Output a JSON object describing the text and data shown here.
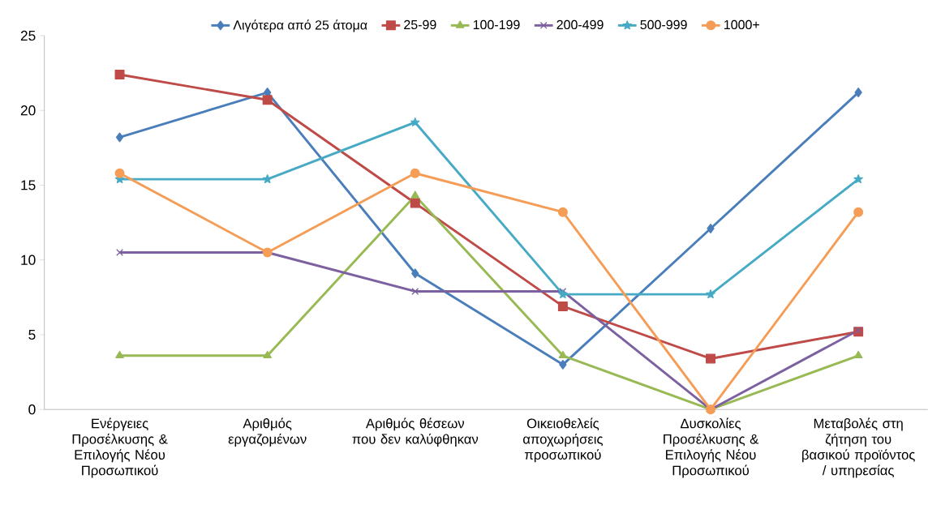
{
  "chart_data": {
    "type": "line",
    "categories": [
      "Ενέργειες Προσέλκυσης & Επιλογής Νέου Προσωπικού",
      "Αριθμός εργαζομένων",
      "Αριθμός θέσεων που δεν καλύφθηκαν",
      "Οικειοθελείς αποχωρήσεις προσωπικού",
      "Δυσκολίες Προσέλκυσης & Επιλογής Νέου Προσωπικού",
      "Μεταβολές στη ζήτηση του βασικού προϊόντος / υπηρεσίας"
    ],
    "series": [
      {
        "name": "Λιγότερα από 25 άτομα",
        "color": "#4a7ebb",
        "marker": "diamond",
        "values": [
          18.2,
          21.2,
          9.1,
          3.0,
          12.1,
          21.2
        ]
      },
      {
        "name": "25-99",
        "color": "#be4b48",
        "marker": "square",
        "values": [
          22.4,
          20.7,
          13.8,
          6.9,
          3.4,
          5.2
        ]
      },
      {
        "name": "100-199",
        "color": "#98b954",
        "marker": "triangle",
        "values": [
          3.6,
          3.6,
          14.3,
          3.6,
          0,
          3.6
        ]
      },
      {
        "name": "200-499",
        "color": "#7d60a0",
        "marker": "cross",
        "values": [
          10.5,
          10.5,
          7.9,
          7.9,
          0,
          5.3
        ]
      },
      {
        "name": "500-999",
        "color": "#46aac5",
        "marker": "star",
        "values": [
          15.4,
          15.4,
          19.2,
          7.7,
          7.7,
          15.4
        ]
      },
      {
        "name": "1000+",
        "color": "#f59d56",
        "marker": "circle",
        "values": [
          15.8,
          10.5,
          15.8,
          13.2,
          0,
          13.2
        ]
      }
    ],
    "ylim": [
      0,
      25
    ],
    "yticks": [
      0,
      5,
      10,
      15,
      20,
      25
    ],
    "grid": false,
    "legend": "top",
    "line_style": "solid"
  }
}
